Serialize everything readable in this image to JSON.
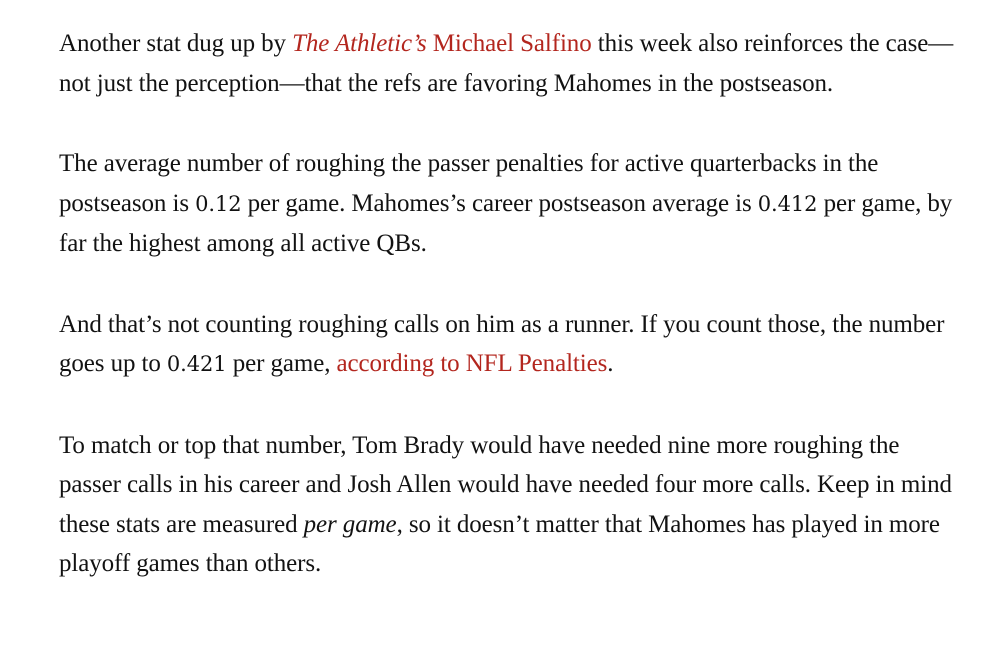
{
  "article": {
    "p1": {
      "s1": "Another stat dug up by ",
      "pub_link": "The Athletic’s",
      "s2": " ",
      "author_link": "Michael Salfino",
      "s3": " this week also reinforces the case—not just the perception—that the refs are favoring Mahomes in the postseason."
    },
    "p2": {
      "s1": "The average number of roughing the passer penalties for active quarterbacks in the postseason is ",
      "n1": "0.12",
      "s2": " per game. Mahomes’s career postseason average is ",
      "n2": "0.412",
      "s3": " per game, by far the highest among all active QBs."
    },
    "p3": {
      "s1": "And that’s not counting roughing calls on him as a runner. If you count those, the number goes up to ",
      "n1": "0.421",
      "s2": " per game, ",
      "link": "according to NFL Penalties",
      "s3": "."
    },
    "p4": {
      "s1": "To match or top that number, Tom Brady would have needed nine more roughing the passer calls in his career and Josh Allen would have needed four more calls. Keep in mind these stats are measured ",
      "em": "per game",
      "s2": ", so it doesn’t matter that Mahomes has played in more playoff games than others."
    }
  },
  "colors": {
    "text": "#121212",
    "link": "#b3261e",
    "background": "#ffffff"
  }
}
